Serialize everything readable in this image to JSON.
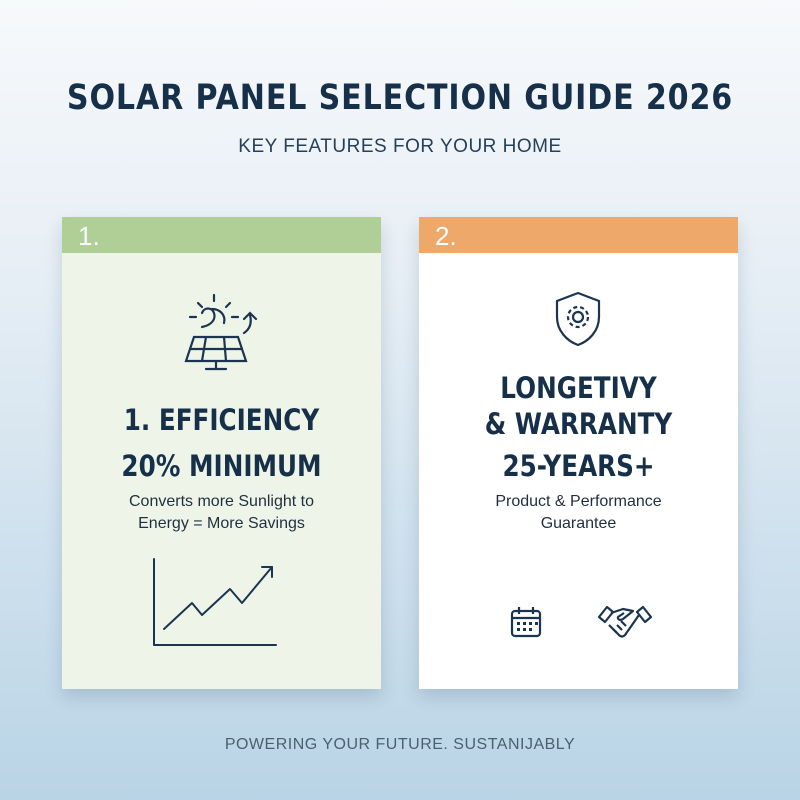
{
  "header": {
    "title": "SOLAR PANEL SELECTION GUIDE 2026",
    "subtitle": "KEY FEATURES FOR YOUR HOME"
  },
  "cards": [
    {
      "number": "1.",
      "accent": "#afcf97",
      "heading_line1": "1. EFFICIENCY",
      "heading_line2": "20% MINIMUM",
      "description_line1": "Converts more Sunlight to",
      "description_line2": "Energy = More Savings",
      "icons": [
        "solar-panel-sun-icon",
        "growth-chart-icon"
      ]
    },
    {
      "number": "2.",
      "accent": "#eea86a",
      "heading_line1": "LONGETIVY",
      "heading_line2": "& WARRANTY",
      "heading_line3": "25-YEARS+",
      "description_line1": "Product & Performance",
      "description_line2": "Guarantee",
      "icons": [
        "shield-gear-icon",
        "calendar-icon",
        "handshake-icon"
      ]
    }
  ],
  "footer": "POWERING YOUR FUTURE. SUSTANIJABLY"
}
